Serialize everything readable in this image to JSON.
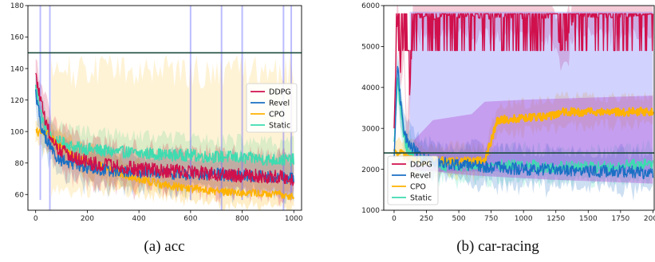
{
  "captions": [
    "(a) acc",
    "(b) car-racing"
  ],
  "colors": {
    "DDPG": "#d0104c",
    "Revel": "#1a6fc4",
    "CPO": "#ffb300",
    "Static": "#3ddcb0",
    "threshold": "#1b4d3e"
  },
  "chart_data": [
    {
      "type": "line",
      "title": "",
      "xlabel": "",
      "ylabel": "",
      "xlim": [
        -30,
        1030
      ],
      "ylim": [
        50,
        180
      ],
      "xticks": [
        0,
        200,
        400,
        600,
        800,
        1000
      ],
      "yticks": [
        60,
        80,
        100,
        120,
        140,
        160,
        180
      ],
      "threshold": 150,
      "legend_position": "center-right",
      "x": [
        0,
        25,
        50,
        75,
        100,
        150,
        200,
        250,
        300,
        350,
        400,
        450,
        500,
        550,
        600,
        650,
        700,
        750,
        800,
        850,
        900,
        950,
        1000
      ],
      "series": [
        {
          "name": "DDPG",
          "values": [
            135,
            115,
            100,
            92,
            88,
            84,
            80,
            79,
            78,
            77,
            76,
            76,
            75,
            75,
            74,
            74,
            73,
            73,
            72,
            72,
            71,
            71,
            70
          ]
        },
        {
          "name": "Revel",
          "values": [
            125,
            100,
            92,
            85,
            82,
            79,
            77,
            76,
            75,
            75,
            74,
            74,
            74,
            73,
            73,
            73,
            73,
            72,
            72,
            72,
            71,
            71,
            70
          ]
        },
        {
          "name": "CPO",
          "values": [
            100,
            99,
            98,
            93,
            90,
            84,
            80,
            78,
            75,
            72,
            70,
            68,
            66,
            65,
            64,
            63,
            62,
            62,
            61,
            61,
            60,
            60,
            59
          ]
        },
        {
          "name": "Static",
          "values": [
            128,
            108,
            98,
            94,
            93,
            90,
            89,
            88,
            87,
            87,
            86,
            86,
            85,
            85,
            85,
            84,
            84,
            84,
            83,
            83,
            82,
            82,
            82
          ]
        }
      ]
    },
    {
      "type": "line",
      "title": "",
      "xlabel": "",
      "ylabel": "",
      "xlim": [
        -80,
        2010
      ],
      "ylim": [
        1000,
        6000
      ],
      "xticks": [
        0,
        250,
        500,
        750,
        1000,
        1250,
        1500,
        1750,
        2000
      ],
      "yticks": [
        1000,
        2000,
        3000,
        4000,
        5000,
        6000
      ],
      "threshold": 2400,
      "legend_position": "bottom-left",
      "x": [
        0,
        25,
        50,
        75,
        100,
        150,
        200,
        250,
        300,
        400,
        500,
        600,
        700,
        800,
        1000,
        1200,
        1300,
        1400,
        1600,
        1800,
        2000
      ],
      "series": [
        {
          "name": "DDPG",
          "values": [
            3000,
            5800,
            4300,
            5100,
            2500,
            5800,
            5700,
            5750,
            5650,
            5780,
            5700,
            5760,
            5650,
            5720,
            5680,
            5700,
            4900,
            5750,
            5700,
            5720,
            5800
          ]
        },
        {
          "name": "Revel",
          "values": [
            2200,
            4600,
            3600,
            3000,
            2700,
            2500,
            2300,
            2250,
            2200,
            2150,
            2100,
            2100,
            2050,
            2050,
            2000,
            2000,
            2000,
            1950,
            1950,
            1950,
            1900
          ]
        },
        {
          "name": "CPO",
          "values": [
            2400,
            2400,
            2450,
            2350,
            2300,
            2250,
            2200,
            2200,
            2200,
            2200,
            2200,
            2200,
            2200,
            3200,
            3250,
            3300,
            3400,
            3400,
            3400,
            3400,
            3420
          ]
        },
        {
          "name": "Static",
          "values": [
            2600,
            4200,
            3400,
            2800,
            2500,
            2300,
            2200,
            2200,
            2150,
            2100,
            2100,
            2100,
            2050,
            2100,
            2100,
            2050,
            2050,
            2050,
            2050,
            2100,
            2150
          ]
        }
      ]
    }
  ]
}
